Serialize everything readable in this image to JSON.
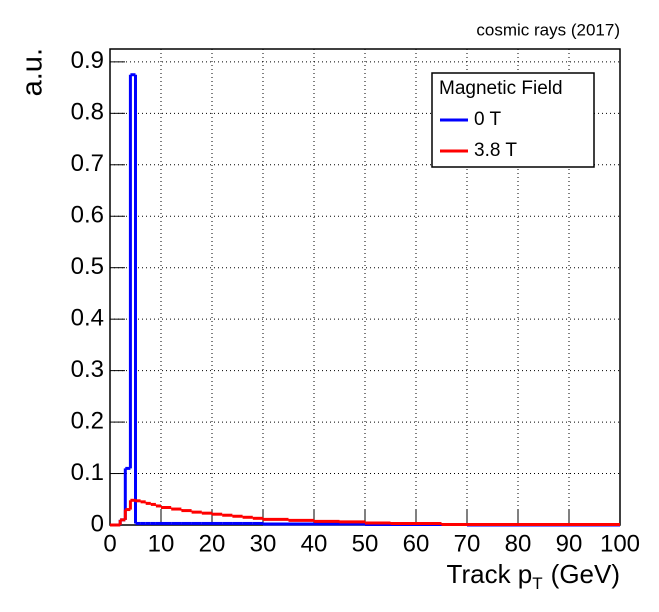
{
  "chart_data": {
    "type": "histogram",
    "title": "cosmic rays (2017)",
    "ylabel": "a.u.",
    "xlabel_parts": [
      "Track p",
      "T",
      "(GeV)"
    ],
    "bins": [
      0,
      1,
      2,
      3,
      4,
      5,
      6,
      7,
      8,
      9,
      10,
      12,
      14,
      16,
      18,
      20,
      22,
      24,
      26,
      28,
      30,
      35,
      40,
      45,
      50,
      55,
      60,
      65,
      70,
      80,
      90,
      100
    ],
    "series": [
      {
        "name": "0 T",
        "color": "#0000ff",
        "values": [
          0,
          0,
          0.01,
          0.11,
          0.875,
          0.003,
          0.003,
          0.003,
          0.003,
          0.003,
          0.003,
          0.003,
          0.003,
          0.003,
          0.003,
          0.003,
          0.003,
          0.003,
          0.003,
          0.003,
          0.002,
          0.002,
          0.002,
          0.002,
          0.001,
          0.001,
          0.001,
          0.001,
          0,
          0,
          0
        ]
      },
      {
        "name": "3.8 T",
        "color": "#ff0000",
        "values": [
          0,
          0,
          0.01,
          0.03,
          0.048,
          0.047,
          0.045,
          0.042,
          0.04,
          0.037,
          0.034,
          0.031,
          0.028,
          0.025,
          0.023,
          0.021,
          0.019,
          0.017,
          0.015,
          0.013,
          0.011,
          0.009,
          0.007,
          0.006,
          0.004,
          0.003,
          0.003,
          0.001,
          0.001,
          0.001,
          0.001
        ]
      }
    ],
    "legend_title": "Magnetic Field",
    "legend_position": "upper-right",
    "xlim": [
      0,
      100
    ],
    "xticks": [
      0,
      10,
      20,
      30,
      40,
      50,
      60,
      70,
      80,
      90,
      100
    ],
    "ylim": [
      0,
      0.925
    ],
    "yticks": [
      0,
      0.1,
      0.2,
      0.3,
      0.4,
      0.5,
      0.6,
      0.7,
      0.8,
      0.9
    ],
    "grid": true
  }
}
